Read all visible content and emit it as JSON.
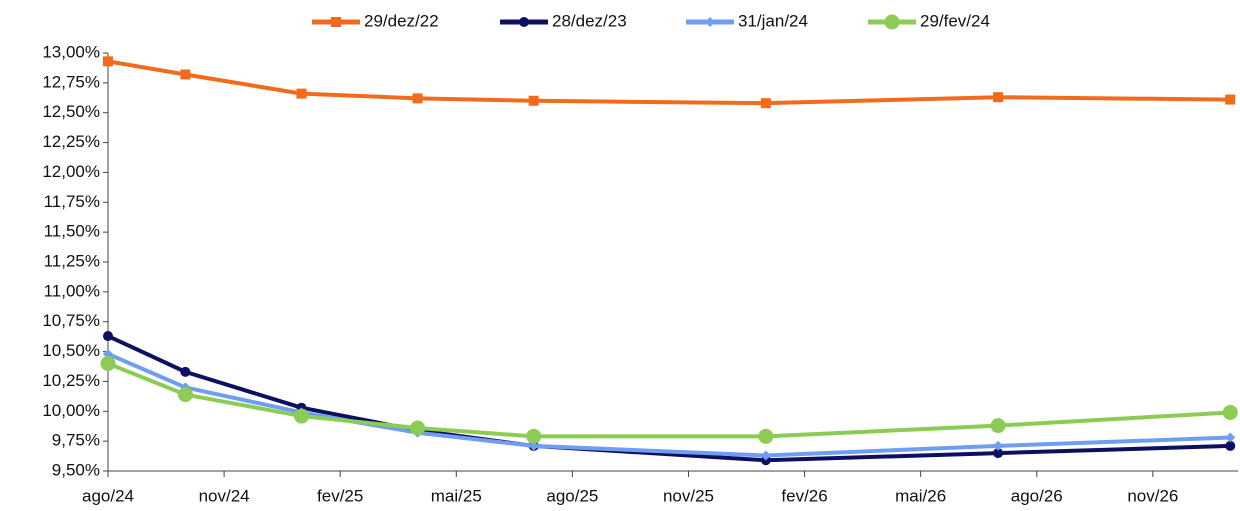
{
  "chart_data": {
    "type": "line",
    "x": [
      0,
      2,
      5,
      8,
      11,
      17,
      23,
      29
    ],
    "xlim": [
      0,
      29.2
    ],
    "xticks": [
      {
        "value": 0,
        "label": "ago/24"
      },
      {
        "value": 3,
        "label": "nov/24"
      },
      {
        "value": 6,
        "label": "fev/25"
      },
      {
        "value": 9,
        "label": "mai/25"
      },
      {
        "value": 12,
        "label": "ago/25"
      },
      {
        "value": 15,
        "label": "nov/25"
      },
      {
        "value": 18,
        "label": "fev/26"
      },
      {
        "value": 21,
        "label": "mai/26"
      },
      {
        "value": 24,
        "label": "ago/26"
      },
      {
        "value": 27,
        "label": "nov/26"
      }
    ],
    "ylim": [
      9.5,
      13.0
    ],
    "yticks": [
      {
        "value": 9.5,
        "label": "9,50%"
      },
      {
        "value": 9.75,
        "label": "9,75%"
      },
      {
        "value": 10.0,
        "label": "10,00%"
      },
      {
        "value": 10.25,
        "label": "10,25%"
      },
      {
        "value": 10.5,
        "label": "10,50%"
      },
      {
        "value": 10.75,
        "label": "10,75%"
      },
      {
        "value": 11.0,
        "label": "11,00%"
      },
      {
        "value": 11.25,
        "label": "11,25%"
      },
      {
        "value": 11.5,
        "label": "11,50%"
      },
      {
        "value": 11.75,
        "label": "11,75%"
      },
      {
        "value": 12.0,
        "label": "12,00%"
      },
      {
        "value": 12.25,
        "label": "12,25%"
      },
      {
        "value": 12.5,
        "label": "12,50%"
      },
      {
        "value": 12.75,
        "label": "12,75%"
      },
      {
        "value": 13.0,
        "label": "13,00%"
      }
    ],
    "legend": "top",
    "series": [
      {
        "name": "29/dez/22",
        "color": "#f26b1d",
        "marker": "square",
        "values": [
          12.93,
          12.82,
          12.66,
          12.62,
          12.6,
          12.58,
          12.63,
          12.61
        ]
      },
      {
        "name": "28/dez/23",
        "color": "#0d1060",
        "marker": "circle",
        "values": [
          10.63,
          10.33,
          10.03,
          9.84,
          9.71,
          9.59,
          9.65,
          9.71
        ]
      },
      {
        "name": "31/jan/24",
        "color": "#6f9ef0",
        "marker": "diamond",
        "values": [
          10.48,
          10.2,
          9.99,
          9.82,
          9.71,
          9.63,
          9.71,
          9.78
        ]
      },
      {
        "name": "29/fev/24",
        "color": "#8ccc55",
        "marker": "bigcircle",
        "values": [
          10.4,
          10.14,
          9.96,
          9.86,
          9.79,
          9.79,
          9.88,
          9.99
        ]
      }
    ]
  }
}
